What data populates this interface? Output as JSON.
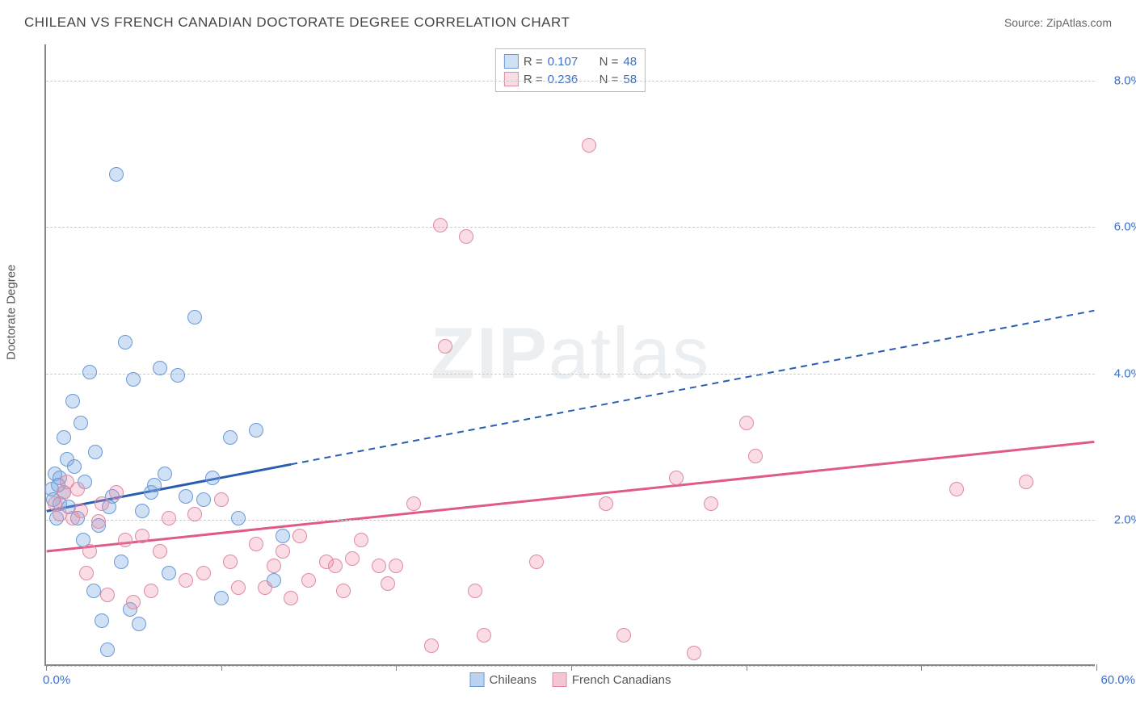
{
  "header": {
    "title": "CHILEAN VS FRENCH CANADIAN DOCTORATE DEGREE CORRELATION CHART",
    "source": "Source: ZipAtlas.com"
  },
  "watermark": {
    "bold": "ZIP",
    "rest": "atlas"
  },
  "chart": {
    "type": "scatter",
    "ylabel": "Doctorate Degree",
    "xlim": [
      0,
      60
    ],
    "ylim": [
      0,
      8.5
    ],
    "yticks": [
      0,
      2,
      4,
      6,
      8
    ],
    "ytick_labels": [
      "",
      "2.0%",
      "4.0%",
      "6.0%",
      "8.0%"
    ],
    "ytick_label_color": "#3b6fc9",
    "xtick_positions": [
      0,
      10,
      20,
      30,
      40,
      50,
      60
    ],
    "x_start_label": "0.0%",
    "x_end_label": "60.0%",
    "grid_color": "#cccccc",
    "background_color": "#ffffff",
    "point_radius": 9,
    "point_stroke_width": 1.5,
    "series": [
      {
        "name": "Chileans",
        "fill": "rgba(120,165,225,0.35)",
        "stroke": "#6a9ad6",
        "trend_color": "#2a5db0",
        "trend_width": 3,
        "trend_solid_end_x": 14,
        "trend": {
          "x1": 0,
          "y1": 2.1,
          "x2": 60,
          "y2": 4.85
        },
        "R": "0.107",
        "N": "48",
        "points": [
          [
            0.3,
            2.4
          ],
          [
            0.5,
            2.6
          ],
          [
            0.8,
            2.2
          ],
          [
            1.0,
            3.1
          ],
          [
            1.2,
            2.8
          ],
          [
            1.5,
            3.6
          ],
          [
            1.8,
            2.0
          ],
          [
            2.0,
            3.3
          ],
          [
            2.2,
            2.5
          ],
          [
            2.5,
            4.0
          ],
          [
            2.7,
            1.0
          ],
          [
            3.0,
            1.9
          ],
          [
            3.2,
            0.6
          ],
          [
            3.5,
            0.2
          ],
          [
            3.8,
            2.3
          ],
          [
            4.0,
            6.7
          ],
          [
            4.3,
            1.4
          ],
          [
            4.5,
            4.4
          ],
          [
            5.0,
            3.9
          ],
          [
            5.3,
            0.55
          ],
          [
            5.5,
            2.1
          ],
          [
            6.0,
            2.35
          ],
          [
            6.2,
            2.45
          ],
          [
            6.5,
            4.05
          ],
          [
            7.0,
            1.25
          ],
          [
            7.5,
            3.95
          ],
          [
            8.0,
            2.3
          ],
          [
            8.5,
            4.75
          ],
          [
            9.0,
            2.25
          ],
          [
            9.5,
            2.55
          ],
          [
            10.0,
            0.9
          ],
          [
            10.5,
            3.1
          ],
          [
            11.0,
            2.0
          ],
          [
            12.0,
            3.2
          ],
          [
            13.0,
            1.15
          ],
          [
            13.5,
            1.75
          ],
          [
            4.8,
            0.75
          ],
          [
            1.0,
            2.35
          ],
          [
            0.6,
            2.0
          ],
          [
            0.8,
            2.55
          ],
          [
            1.3,
            2.15
          ],
          [
            0.4,
            2.25
          ],
          [
            0.7,
            2.45
          ],
          [
            1.6,
            2.7
          ],
          [
            2.1,
            1.7
          ],
          [
            2.8,
            2.9
          ],
          [
            3.6,
            2.15
          ],
          [
            6.8,
            2.6
          ]
        ]
      },
      {
        "name": "French Canadians",
        "fill": "rgba(235,140,165,0.30)",
        "stroke": "#e08aa3",
        "trend_color": "#e05a88",
        "trend_width": 3,
        "trend_solid_end_x": 60,
        "trend": {
          "x1": 0,
          "y1": 1.55,
          "x2": 60,
          "y2": 3.05
        },
        "R": "0.236",
        "N": "58",
        "points": [
          [
            0.5,
            2.2
          ],
          [
            1.0,
            2.35
          ],
          [
            1.5,
            2.0
          ],
          [
            2.0,
            2.1
          ],
          [
            2.5,
            1.55
          ],
          [
            3.0,
            1.95
          ],
          [
            3.5,
            0.95
          ],
          [
            4.0,
            2.35
          ],
          [
            4.5,
            1.7
          ],
          [
            5.0,
            0.85
          ],
          [
            5.5,
            1.75
          ],
          [
            6.0,
            1.0
          ],
          [
            7.0,
            2.0
          ],
          [
            8.0,
            1.15
          ],
          [
            9.0,
            1.25
          ],
          [
            10.0,
            2.25
          ],
          [
            10.5,
            1.4
          ],
          [
            11.0,
            1.05
          ],
          [
            12.0,
            1.65
          ],
          [
            12.5,
            1.05
          ],
          [
            13.0,
            1.35
          ],
          [
            14.0,
            0.9
          ],
          [
            14.5,
            1.75
          ],
          [
            15.0,
            1.15
          ],
          [
            16.0,
            1.4
          ],
          [
            16.5,
            1.35
          ],
          [
            17.0,
            1.0
          ],
          [
            18.0,
            1.7
          ],
          [
            19.0,
            1.35
          ],
          [
            20.0,
            1.35
          ],
          [
            21.0,
            2.2
          ],
          [
            22.0,
            0.25
          ],
          [
            22.5,
            6.0
          ],
          [
            22.8,
            4.35
          ],
          [
            24.0,
            5.85
          ],
          [
            24.5,
            1.0
          ],
          [
            25.0,
            0.4
          ],
          [
            28.0,
            1.4
          ],
          [
            31.0,
            7.1
          ],
          [
            32.0,
            2.2
          ],
          [
            33.0,
            0.4
          ],
          [
            36.0,
            2.55
          ],
          [
            37.0,
            0.15
          ],
          [
            38.0,
            2.2
          ],
          [
            40.0,
            3.3
          ],
          [
            40.5,
            2.85
          ],
          [
            52.0,
            2.4
          ],
          [
            56.0,
            2.5
          ],
          [
            1.2,
            2.5
          ],
          [
            0.8,
            2.05
          ],
          [
            1.8,
            2.4
          ],
          [
            2.3,
            1.25
          ],
          [
            3.2,
            2.2
          ],
          [
            6.5,
            1.55
          ],
          [
            8.5,
            2.05
          ],
          [
            13.5,
            1.55
          ],
          [
            17.5,
            1.45
          ],
          [
            19.5,
            1.1
          ]
        ]
      }
    ],
    "r_legend_labels": {
      "R": "R =",
      "N": "N ="
    },
    "bottom_legend": [
      {
        "label": "Chileans",
        "fill": "rgba(120,165,225,0.5)",
        "stroke": "#6a9ad6"
      },
      {
        "label": "French Canadians",
        "fill": "rgba(235,140,165,0.5)",
        "stroke": "#e08aa3"
      }
    ]
  }
}
